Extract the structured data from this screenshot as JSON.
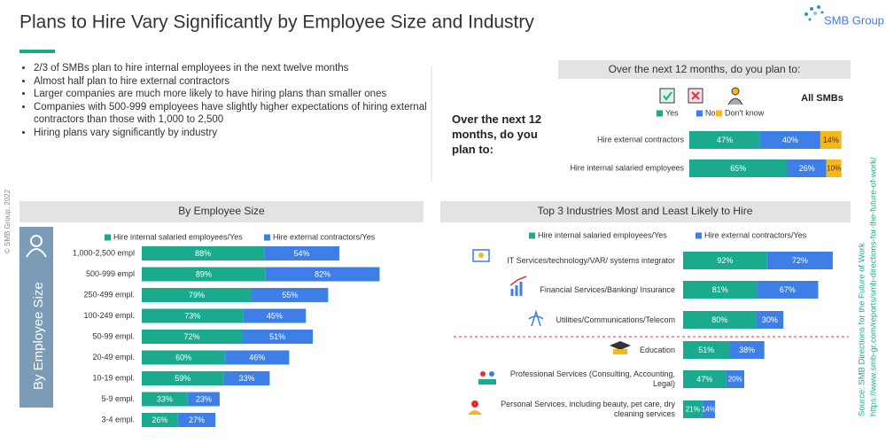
{
  "header": {
    "title": "Plans to Hire Vary Significantly by Employee Size and Industry",
    "logo": "SMB Group"
  },
  "bullets": [
    "2/3 of SMBs plan to hire internal employees in the next twelve months",
    "Almost half plan to hire external contractors",
    "Larger companies are much more likely to have hiring plans than smaller ones",
    "Companies with 500-999 employees have slightly higher expectations of hiring external contractors than those with 1,000 to 2,500",
    "Hiring plans vary significantly by industry"
  ],
  "copyright": "© SMB Group, 2022",
  "source": [
    "Source: SMB Directions for the Future of Work",
    "https://www.smb-gr.com/reports/smb-directions-for-the-future-of-work/"
  ],
  "chart_data": [
    {
      "type": "bar",
      "orientation": "horizontal",
      "stacked": true,
      "title": "Over the  next 12 months, do you plan to:",
      "question": "Over the next 12 months, do you plan to:",
      "column_label": "All SMBs",
      "categories": [
        "Hire external contractors",
        "Hire internal salaried employees"
      ],
      "series": [
        {
          "name": "Yes",
          "color": "#1aab8e",
          "values": [
            47,
            65
          ],
          "value_labels": [
            "47%",
            "65%"
          ]
        },
        {
          "name": "No",
          "color": "#3d7fe6",
          "values": [
            40,
            26
          ],
          "value_labels": [
            "40%",
            "26%"
          ]
        },
        {
          "name": "Don't know",
          "color": "#f7b718",
          "values": [
            14,
            10
          ],
          "value_labels": [
            "14%",
            "10%"
          ]
        }
      ]
    },
    {
      "type": "bar",
      "orientation": "horizontal",
      "stacked": true,
      "title": "By Employee Size",
      "side_label": "By Employee Size",
      "categories": [
        "1,000-2,500 empl",
        "500-999 empl",
        "250-499 empl.",
        "100-249 empl.",
        "50-99 empl.",
        "20-49 empl.",
        "10-19 empl.",
        "5-9 empl.",
        "3-4 empl."
      ],
      "series": [
        {
          "name": "Hire internal salaried employees/Yes",
          "color": "#1aab8e",
          "values": [
            88,
            89,
            79,
            73,
            72,
            60,
            59,
            33,
            26
          ],
          "value_labels": [
            "88%",
            "89%",
            "79%",
            "73%",
            "72%",
            "60%",
            "59%",
            "33%",
            "26%"
          ]
        },
        {
          "name": "Hire external contractors/Yes",
          "color": "#3d7fe6",
          "values": [
            54,
            82,
            55,
            45,
            51,
            46,
            33,
            23,
            27
          ],
          "value_labels": [
            "54%",
            "82%",
            "55%",
            "45%",
            "51%",
            "46%",
            "33%",
            "23%",
            "27%"
          ]
        }
      ]
    },
    {
      "type": "bar",
      "orientation": "horizontal",
      "stacked": true,
      "title": "Top 3 Industries Most and Least Likely to Hire",
      "categories": [
        "IT Services/technology/VAR/ systems integrator",
        "Financial Services/Banking/ Insurance",
        "Utilities/Communications/Telecom",
        "Education",
        "Professional Services (Consulting, Accounting, Legal)",
        "Personal Services, including beauty, pet care, dry cleaning services"
      ],
      "series": [
        {
          "name": "Hire internal salaried employees/Yes",
          "color": "#1aab8e",
          "values": [
            92,
            81,
            80,
            51,
            47,
            21
          ],
          "value_labels": [
            "92%",
            "81%",
            "80%",
            "51%",
            "47%",
            "21%"
          ]
        },
        {
          "name": "Hire external contractors/Yes",
          "color": "#3d7fe6",
          "values": [
            72,
            67,
            30,
            38,
            20,
            14
          ],
          "value_labels": [
            "72%",
            "67%",
            "30%",
            "38%",
            "20%",
            "14%"
          ]
        }
      ]
    }
  ]
}
